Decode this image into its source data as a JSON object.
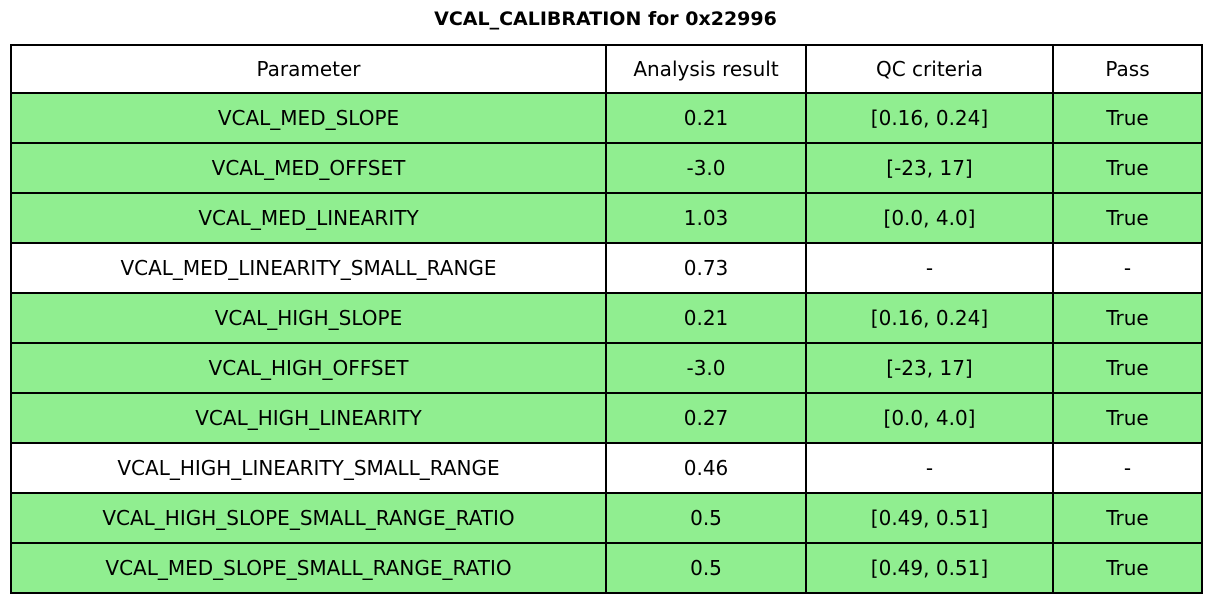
{
  "title": "VCAL_CALIBRATION for 0x22996",
  "colors": {
    "pass_green": "#90EE90",
    "border": "#000000",
    "background": "#ffffff",
    "text": "#000000"
  },
  "chart_data": {
    "type": "table",
    "title": "VCAL_CALIBRATION for 0x22996",
    "columns": [
      "Parameter",
      "Analysis result",
      "QC criteria",
      "Pass"
    ],
    "rows": [
      {
        "parameter": "VCAL_MED_SLOPE",
        "analysis_result": "0.21",
        "qc_criteria": "[0.16, 0.24]",
        "pass": "True",
        "highlight_green": true
      },
      {
        "parameter": "VCAL_MED_OFFSET",
        "analysis_result": "-3.0",
        "qc_criteria": "[-23, 17]",
        "pass": "True",
        "highlight_green": true
      },
      {
        "parameter": "VCAL_MED_LINEARITY",
        "analysis_result": "1.03",
        "qc_criteria": "[0.0, 4.0]",
        "pass": "True",
        "highlight_green": true
      },
      {
        "parameter": "VCAL_MED_LINEARITY_SMALL_RANGE",
        "analysis_result": "0.73",
        "qc_criteria": "-",
        "pass": "-",
        "highlight_green": false
      },
      {
        "parameter": "VCAL_HIGH_SLOPE",
        "analysis_result": "0.21",
        "qc_criteria": "[0.16, 0.24]",
        "pass": "True",
        "highlight_green": true
      },
      {
        "parameter": "VCAL_HIGH_OFFSET",
        "analysis_result": "-3.0",
        "qc_criteria": "[-23, 17]",
        "pass": "True",
        "highlight_green": true
      },
      {
        "parameter": "VCAL_HIGH_LINEARITY",
        "analysis_result": "0.27",
        "qc_criteria": "[0.0, 4.0]",
        "pass": "True",
        "highlight_green": true
      },
      {
        "parameter": "VCAL_HIGH_LINEARITY_SMALL_RANGE",
        "analysis_result": "0.46",
        "qc_criteria": "-",
        "pass": "-",
        "highlight_green": false
      },
      {
        "parameter": "VCAL_HIGH_SLOPE_SMALL_RANGE_RATIO",
        "analysis_result": "0.5",
        "qc_criteria": "[0.49, 0.51]",
        "pass": "True",
        "highlight_green": true
      },
      {
        "parameter": "VCAL_MED_SLOPE_SMALL_RANGE_RATIO",
        "analysis_result": "0.5",
        "qc_criteria": "[0.49, 0.51]",
        "pass": "True",
        "highlight_green": true
      }
    ],
    "layout": {
      "legend": "none",
      "grid": "full-cell-borders",
      "header_background": "#ffffff",
      "pass_row_background": "#90EE90"
    }
  }
}
